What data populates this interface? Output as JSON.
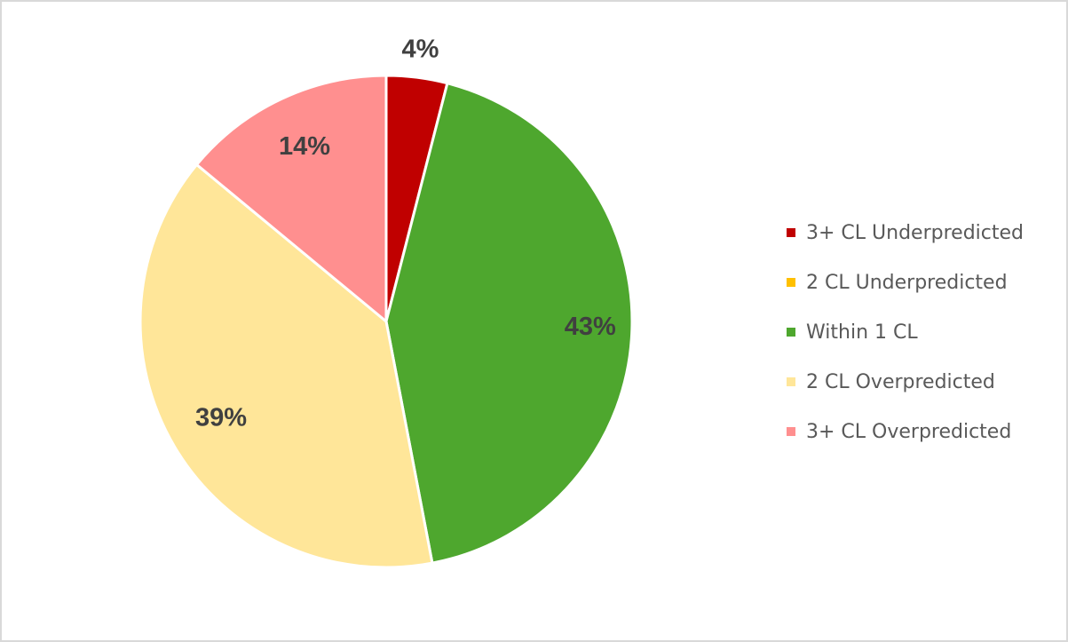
{
  "chart_data": {
    "type": "pie",
    "title": "",
    "legend_position": "right",
    "slices": [
      {
        "label": "3+ CL Underpredicted",
        "value": 4,
        "data_label": "4%",
        "color": "#C00000"
      },
      {
        "label": "2 CL Underpredicted",
        "value": 0,
        "data_label": "",
        "color": "#FFC000"
      },
      {
        "label": "Within 1 CL",
        "value": 43,
        "data_label": "43%",
        "color": "#4EA72E"
      },
      {
        "label": "2 CL Overpredicted",
        "value": 39,
        "data_label": "39%",
        "color": "#FFE699"
      },
      {
        "label": "3+ CL Overpredicted",
        "value": 14,
        "data_label": "14%",
        "color": "#FF8F8F"
      }
    ]
  }
}
